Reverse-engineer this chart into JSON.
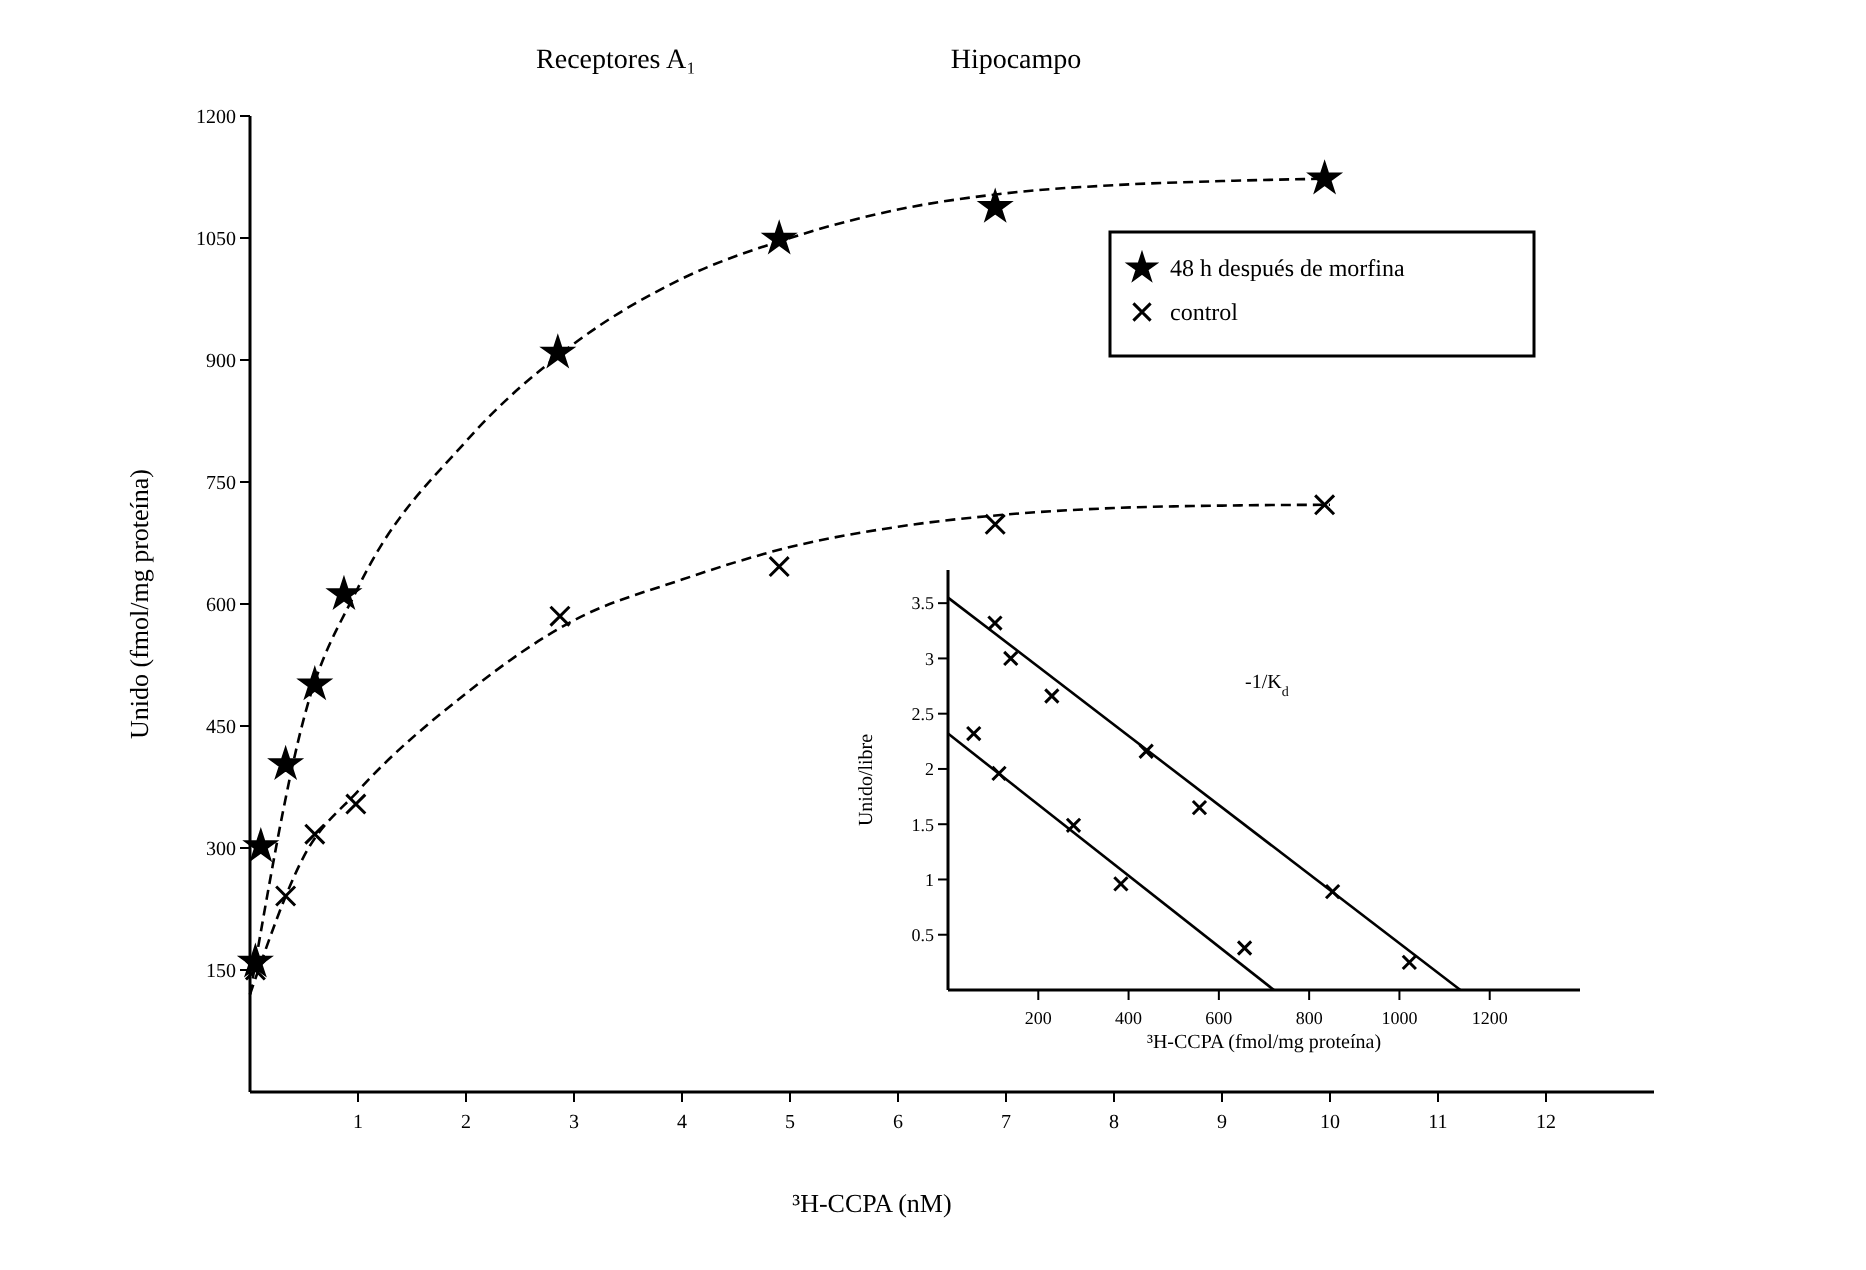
{
  "chart_data": [
    {
      "type": "scatter",
      "title": "Receptores A₁",
      "subtitle": "Hipocampo",
      "xlabel": "³H-CCPA (nM)",
      "ylabel": "Unido (fmol/mg proteína)",
      "xlim": [
        0,
        13
      ],
      "xticks": [
        1,
        2,
        3,
        4,
        5,
        6,
        7,
        8,
        9,
        10,
        11,
        12
      ],
      "ylim": [
        0,
        1200
      ],
      "yticks": [
        150,
        300,
        450,
        600,
        750,
        900,
        1050,
        1200
      ],
      "grid": false,
      "legend": "top right",
      "series": [
        {
          "name": "48 h después de morfina",
          "marker": "star",
          "color": "#000000",
          "x": [
            0.05,
            0.1,
            0.33,
            0.6,
            0.87,
            2.85,
            4.9,
            6.9,
            9.95
          ],
          "values": [
            160,
            302,
            403,
            501,
            612,
            909,
            1049,
            1088,
            1123
          ]
        },
        {
          "name": "control",
          "marker": "cross",
          "color": "#000000",
          "x": [
            0.05,
            0.33,
            0.6,
            0.98,
            2.87,
            4.9,
            6.9,
            9.95
          ],
          "values": [
            150,
            241,
            317,
            354,
            585,
            646,
            698,
            722
          ]
        },
        {
          "type": "line",
          "marker": "none",
          "line_style": "dashed",
          "color": "#000000",
          "x": [
            0,
            0.5,
            1,
            2,
            3,
            4,
            5,
            6,
            7,
            8,
            9,
            10
          ],
          "values": [
            120,
            460,
            620,
            800,
            920,
            1000,
            1050,
            1085,
            1105,
            1115,
            1120,
            1123
          ]
        },
        {
          "type": "line",
          "marker": "none",
          "line_style": "dashed",
          "color": "#000000",
          "x": [
            0,
            0.5,
            1,
            2,
            3,
            4,
            5,
            6,
            7,
            8,
            9,
            10
          ],
          "values": [
            120,
            290,
            370,
            490,
            580,
            630,
            670,
            695,
            710,
            718,
            721,
            722
          ]
        }
      ]
    },
    {
      "type": "scatter",
      "xlabel": "³H-CCPA (fmol/mg proteína)",
      "ylabel": "Unido/libre",
      "xlim": [
        0,
        1400
      ],
      "xticks": [
        200,
        400,
        600,
        800,
        1000,
        1200
      ],
      "ylim": [
        0,
        3.8
      ],
      "yticks": [
        0.5,
        1,
        1.5,
        2,
        2.5,
        3,
        3.5
      ],
      "grid": false,
      "annotations": [
        "-1/K$_{d}$"
      ],
      "series": [
        {
          "marker": "cross",
          "color": "#000000",
          "x": [
            104,
            139,
            230,
            439,
            557,
            852,
            1022
          ],
          "values": [
            3.32,
            3.0,
            2.66,
            2.16,
            1.65,
            0.89,
            0.25
          ]
        },
        {
          "marker": "cross",
          "color": "#000000",
          "x": [
            57,
            113,
            278,
            383,
            657
          ],
          "values": [
            2.32,
            1.96,
            1.49,
            0.96,
            0.38
          ]
        },
        {
          "type": "line",
          "marker": "none",
          "line_style": "solid",
          "color": "#000000",
          "x": [
            0,
            1135
          ],
          "values": [
            3.55,
            0
          ]
        },
        {
          "type": "line",
          "marker": "none",
          "line_style": "solid",
          "color": "#000000",
          "x": [
            0,
            722
          ],
          "values": [
            2.32,
            0
          ]
        }
      ]
    }
  ]
}
